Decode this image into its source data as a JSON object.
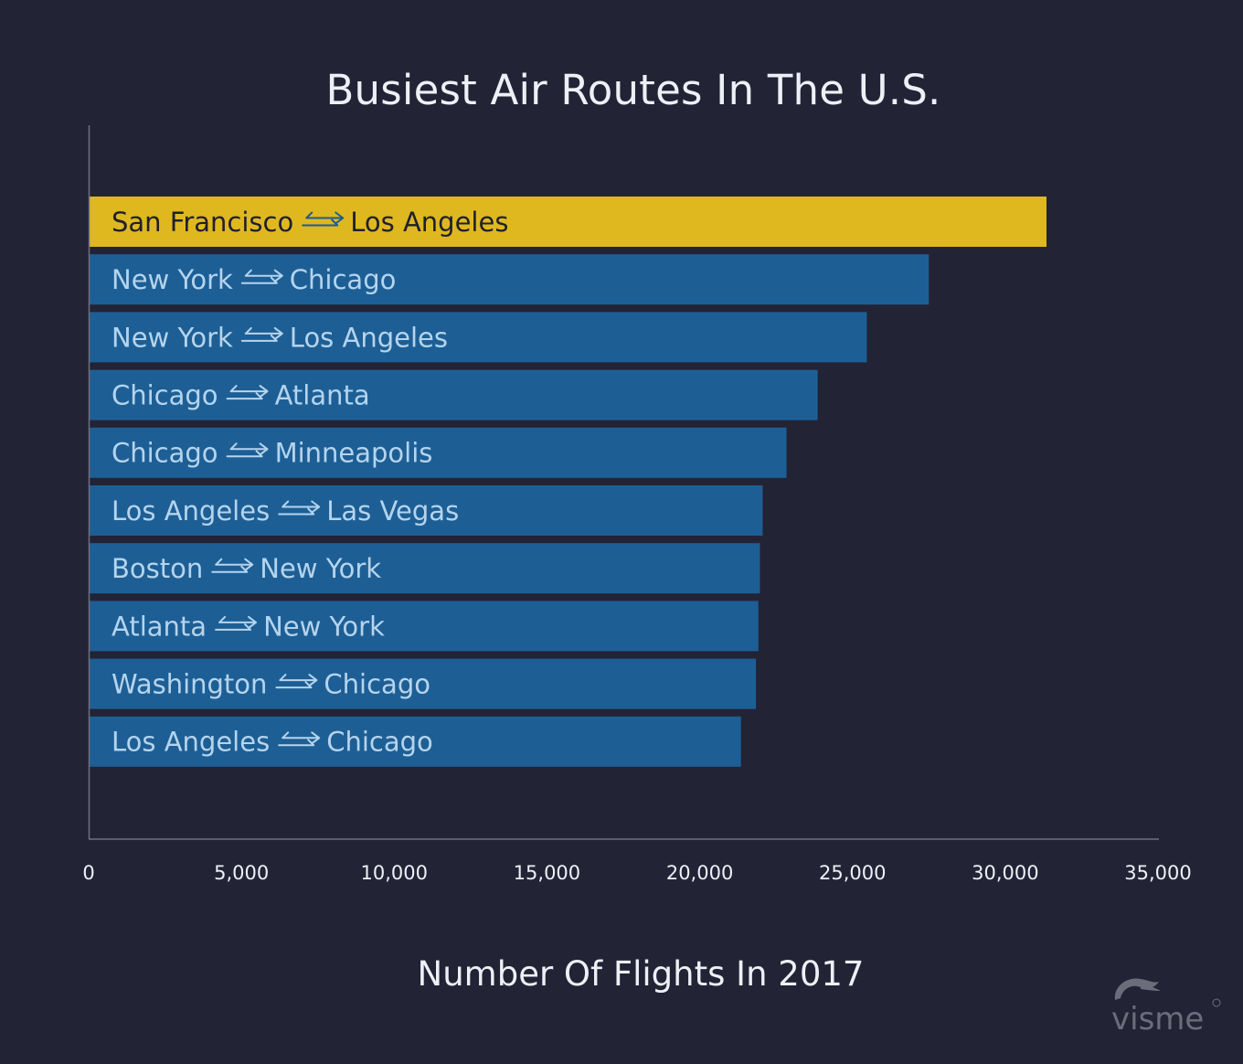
{
  "chart_data": {
    "type": "bar",
    "orientation": "horizontal",
    "title": "Busiest Air Routes In The U.S.",
    "xlabel": "Number Of Flights In 2017",
    "ylabel": "",
    "xlim": [
      0,
      35000
    ],
    "xticks": [
      "0",
      "5,000",
      "10,000",
      "15,000",
      "20,000",
      "25,000",
      "30,000",
      "35,000"
    ],
    "xtick_values": [
      0,
      5000,
      10000,
      15000,
      20000,
      25000,
      30000,
      35000
    ],
    "grid": false,
    "categories": [
      {
        "from": "San Francisco",
        "to": "Los Angeles"
      },
      {
        "from": "New York",
        "to": "Chicago"
      },
      {
        "from": "New York",
        "to": "Los Angeles"
      },
      {
        "from": "Chicago",
        "to": "Atlanta"
      },
      {
        "from": "Chicago",
        "to": "Minneapolis"
      },
      {
        "from": "Los Angeles",
        "to": "Las Vegas"
      },
      {
        "from": "Boston",
        "to": "New York"
      },
      {
        "from": "Atlanta",
        "to": "New York"
      },
      {
        "from": "Washington",
        "to": "Chicago"
      },
      {
        "from": "Los Angeles",
        "to": "Chicago"
      }
    ],
    "values": [
      31350,
      27500,
      25470,
      23860,
      22840,
      22060,
      21970,
      21920,
      21840,
      21350
    ],
    "highlight_index": 0,
    "colors": {
      "bar": "#1d5f95",
      "highlight_bar": "#dfb81f",
      "label": "#b5d4ee",
      "highlight_label": "#1f1f2e",
      "arrow": "#b5d4ee",
      "highlight_arrow": "#1e5c94",
      "axis": "#6f7080",
      "tick_label": "#eef0f6",
      "background": "#232336"
    }
  },
  "branding": {
    "logo_text": "visme"
  }
}
